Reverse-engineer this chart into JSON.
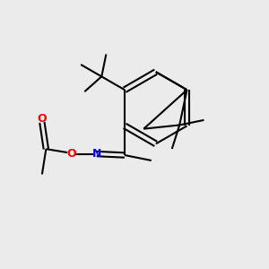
{
  "background_color": "#ebebeb",
  "bond_color": "#000000",
  "N_color": "#0000ff",
  "O_color": "#ff0000",
  "line_width": 1.5,
  "figsize": [
    3.0,
    3.0
  ],
  "dpi": 100,
  "xlim": [
    0,
    10
  ],
  "ylim": [
    0,
    10
  ]
}
